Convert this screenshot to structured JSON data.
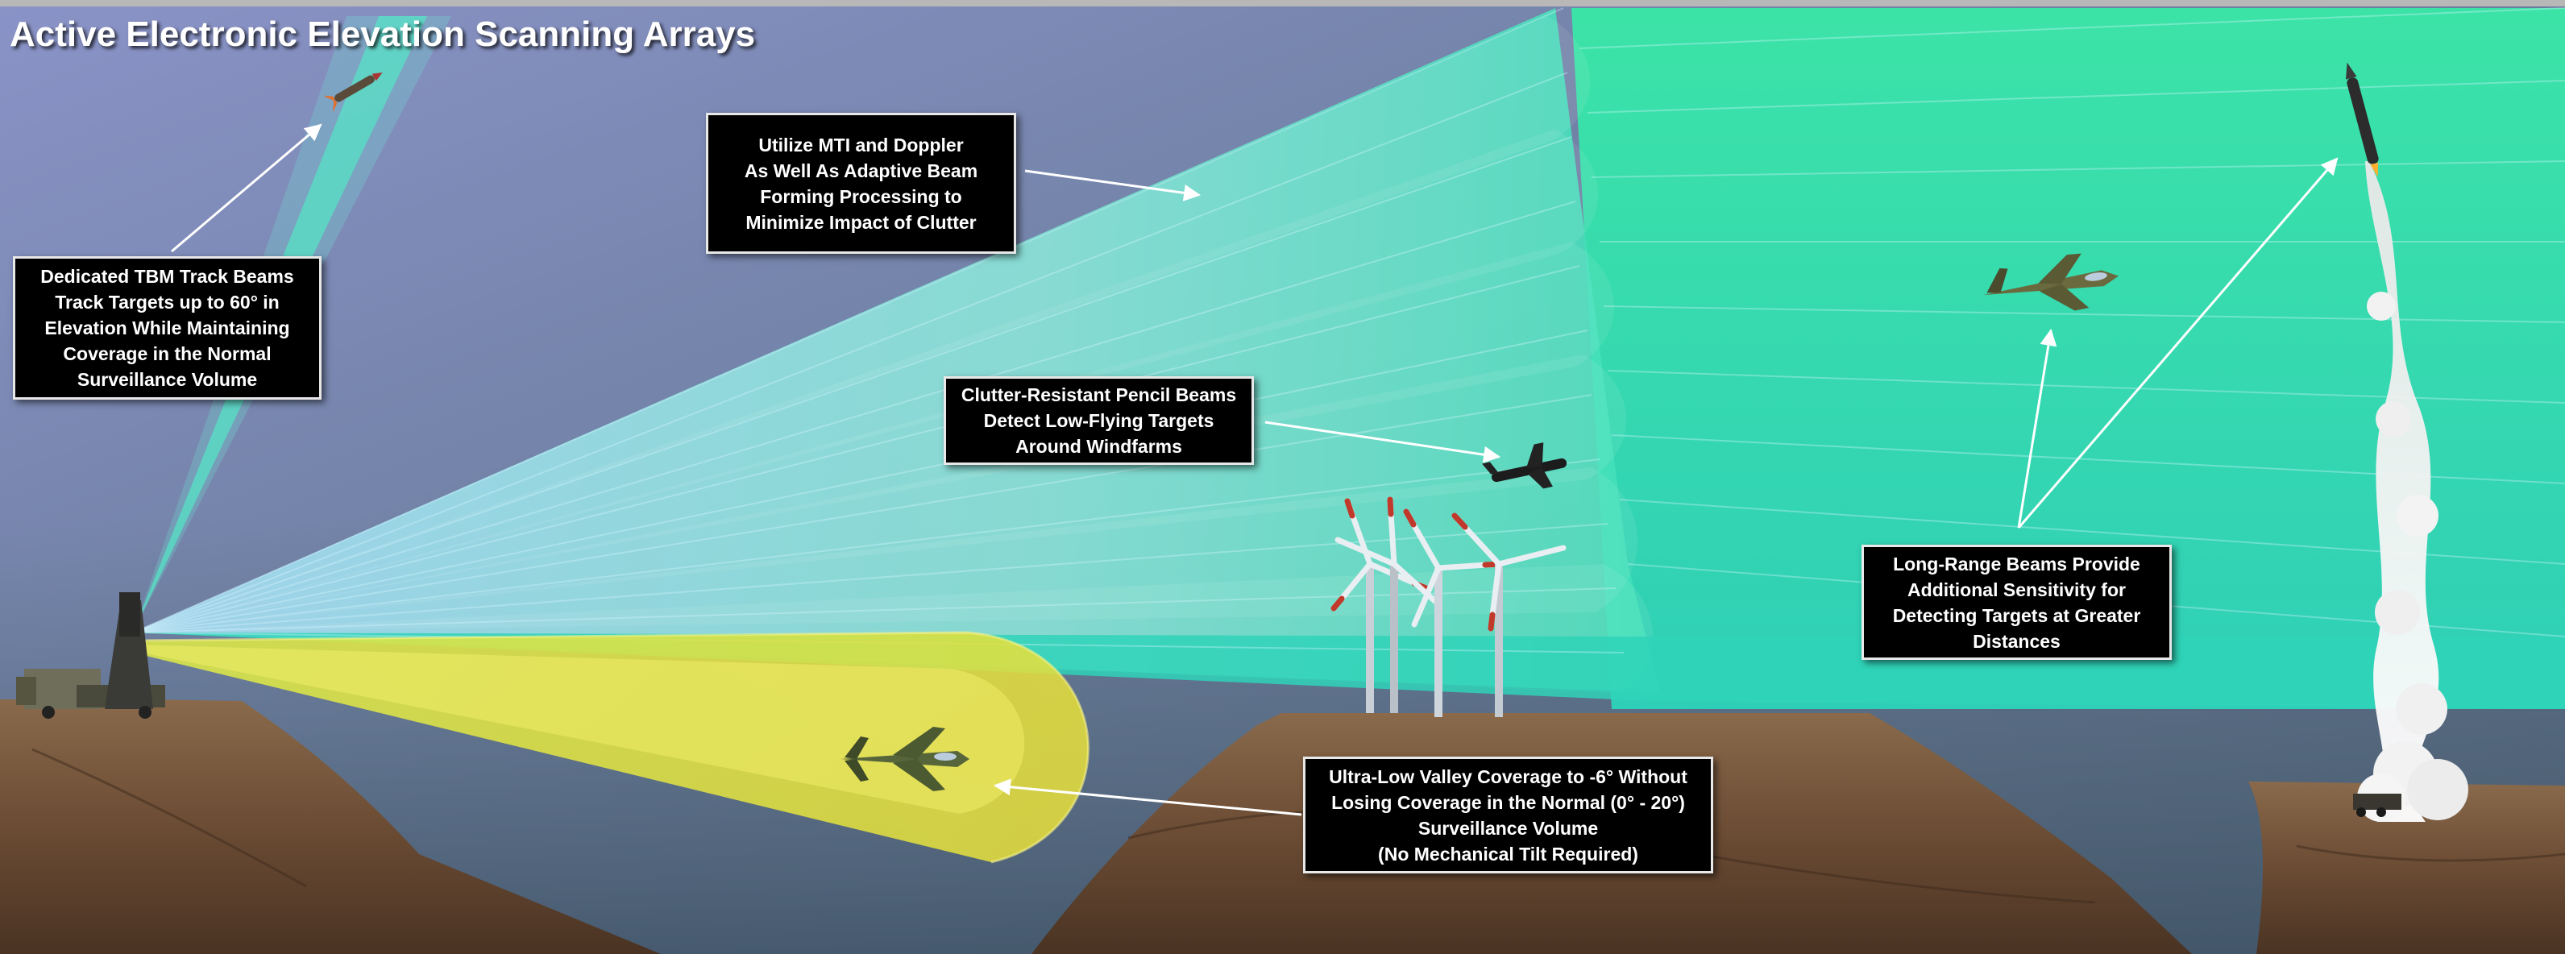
{
  "title": "Active Electronic Elevation Scanning Arrays",
  "callouts": {
    "tbm": {
      "lines": [
        "Dedicated TBM Track Beams",
        "Track Targets up to 60° in",
        "Elevation While Maintaining",
        "Coverage in the Normal",
        "Surveillance Volume"
      ]
    },
    "mti": {
      "lines": [
        "Utilize MTI and Doppler",
        "As Well As Adaptive Beam",
        "Forming Processing to",
        "Minimize Impact of Clutter"
      ]
    },
    "pencil": {
      "lines": [
        "Clutter-Resistant Pencil Beams",
        "Detect Low-Flying Targets",
        "Around Windfarms"
      ]
    },
    "longrange": {
      "lines": [
        "Long-Range Beams Provide",
        "Additional Sensitivity for",
        "Detecting Targets at Greater",
        "Distances"
      ]
    },
    "valley": {
      "lines": [
        "Ultra-Low Valley Coverage to -6° Without",
        "Losing Coverage in the Normal (0° - 20°)",
        "Surveillance Volume",
        "(No Mechanical Tilt Required)"
      ]
    }
  },
  "colors": {
    "beam_cyan": "#3fe0c8",
    "beam_blue": "#8fd4f0",
    "beam_valley": "#e6e83a",
    "terrain": "#6b4c34",
    "callout_bg": "#000000"
  },
  "icons": [
    "radar-antenna-icon",
    "tbm-missile-icon",
    "fighter-jet-icon",
    "small-aircraft-icon",
    "wind-turbine-icon",
    "ballistic-missile-icon",
    "launcher-vehicle-icon"
  ]
}
